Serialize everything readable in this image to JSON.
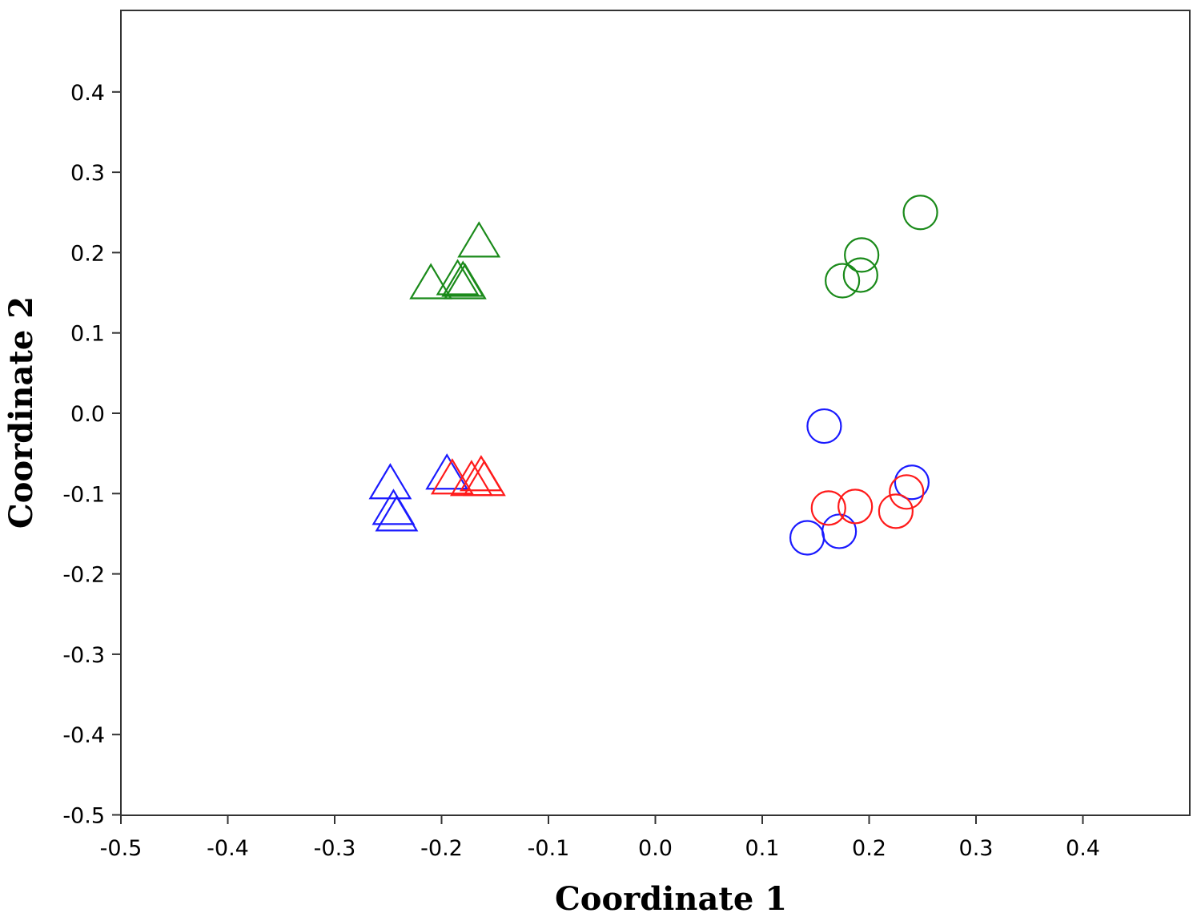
{
  "chart_data": {
    "type": "scatter",
    "title": "",
    "xlabel": "Coordinate 1",
    "ylabel": "Coordinate 2",
    "xlim": [
      -0.5,
      0.5
    ],
    "ylim": [
      -0.5,
      0.5
    ],
    "xticks": [
      "-0.5",
      "-0.4",
      "-0.3",
      "-0.2",
      "-0.1",
      "0.0",
      "0.1",
      "0.2",
      "0.3",
      "0.4"
    ],
    "yticks": [
      "-0.5",
      "-0.4",
      "-0.3",
      "-0.2",
      "-0.1",
      "0.0",
      "0.1",
      "0.2",
      "0.3",
      "0.4"
    ],
    "grid": false,
    "legend": "none",
    "series": [
      {
        "marker": "triangle",
        "color": "#1a8a1a",
        "points": [
          [
            -0.165,
            0.215
          ],
          [
            -0.21,
            0.163
          ],
          [
            -0.18,
            0.166
          ],
          [
            -0.185,
            0.168
          ],
          [
            -0.178,
            0.163
          ]
        ]
      },
      {
        "marker": "circle",
        "color": "#1a8a1a",
        "points": [
          [
            0.248,
            0.25
          ],
          [
            0.193,
            0.197
          ],
          [
            0.192,
            0.172
          ],
          [
            0.175,
            0.165
          ]
        ]
      },
      {
        "marker": "triangle",
        "color": "#1a1aff",
        "points": [
          [
            -0.248,
            -0.086
          ],
          [
            -0.245,
            -0.118
          ],
          [
            -0.242,
            -0.126
          ],
          [
            -0.195,
            -0.074
          ]
        ]
      },
      {
        "marker": "triangle",
        "color": "#ff1a1a",
        "points": [
          [
            -0.163,
            -0.076
          ],
          [
            -0.16,
            -0.082
          ],
          [
            -0.19,
            -0.08
          ],
          [
            -0.172,
            -0.082
          ]
        ]
      },
      {
        "marker": "circle",
        "color": "#1a1aff",
        "points": [
          [
            0.158,
            -0.016
          ],
          [
            0.24,
            -0.086
          ],
          [
            0.142,
            -0.155
          ],
          [
            0.172,
            -0.147
          ]
        ]
      },
      {
        "marker": "circle",
        "color": "#ff1a1a",
        "points": [
          [
            0.162,
            -0.118
          ],
          [
            0.187,
            -0.116
          ],
          [
            0.225,
            -0.122
          ],
          [
            0.235,
            -0.098
          ]
        ]
      }
    ]
  }
}
